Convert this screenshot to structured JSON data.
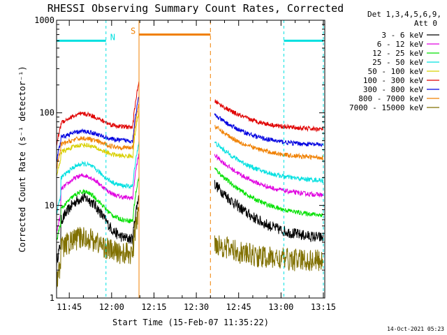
{
  "chart_data": {
    "type": "line",
    "title": "RHESSI Observing Summary Count Rates, Corrected",
    "xlabel": "Start Time (15-Feb-07 11:35:22)",
    "ylabel": "Corrected Count Rate (s⁻¹ detector⁻¹)",
    "yscale": "log",
    "ylim": [
      1,
      1000
    ],
    "xlim_minutes_after_1135": [
      5.5,
      100.5
    ],
    "x_ticks": [
      {
        "label": "11:45",
        "minutes": 10
      },
      {
        "label": "12:00",
        "minutes": 25
      },
      {
        "label": "12:15",
        "minutes": 40
      },
      {
        "label": "12:30",
        "minutes": 55
      },
      {
        "label": "12:45",
        "minutes": 70
      },
      {
        "label": "13:00",
        "minutes": 85
      },
      {
        "label": "13:15",
        "minutes": 100
      }
    ],
    "y_ticks": [
      {
        "label": "1",
        "value": 1
      },
      {
        "label": "10",
        "value": 10
      },
      {
        "label": "100",
        "value": 100
      },
      {
        "label": "1000",
        "value": 1000
      }
    ],
    "legend_header": [
      "Det 1,3,4,5,6,9,",
      "Att 0"
    ],
    "series": [
      {
        "name": "3 - 6 keV",
        "color": "#000000",
        "base": [
          2.4,
          4.3
        ],
        "peak": 12,
        "post_start": 17,
        "post_end": 4.2
      },
      {
        "name": "6 - 12 keV",
        "color": "#e000e0",
        "base": [
          5,
          12
        ],
        "peak": 21,
        "post_start": 35,
        "post_end": 12.5
      },
      {
        "name": "12 - 25 keV",
        "color": "#00e000",
        "base": [
          4,
          6.8
        ],
        "peak": 14,
        "post_start": 25,
        "post_end": 7.5
      },
      {
        "name": "25 - 50 keV",
        "color": "#00e0e0",
        "base": [
          8,
          16
        ],
        "peak": 28,
        "post_start": 48,
        "post_end": 18
      },
      {
        "name": "50 - 100 keV",
        "color": "#d8d000",
        "base": [
          20,
          34
        ],
        "peak": 45,
        "post_start": 0,
        "post_end": 0
      },
      {
        "name": "100 - 300 keV",
        "color": "#e00000",
        "base": [
          45,
          70
        ],
        "peak": 97,
        "post_start": 135,
        "post_end": 65
      },
      {
        "name": "300 - 800 keV",
        "color": "#0000e0",
        "base": [
          30,
          50
        ],
        "peak": 63,
        "post_start": 95,
        "post_end": 44
      },
      {
        "name": "800 - 7000 keV",
        "color": "#f08000",
        "base": [
          25,
          42
        ],
        "peak": 53,
        "post_start": 72,
        "post_end": 32
      },
      {
        "name": "7000 - 15000 keV",
        "color": "#807000",
        "base": [
          1.5,
          3
        ],
        "peak": 4.5,
        "post_start": 4,
        "post_end": 2.5
      }
    ],
    "intervals": [
      {
        "label": "N",
        "color": "#00e0e0",
        "start_minutes": 5.5,
        "end_minutes": 23,
        "level": 600
      },
      {
        "label": "",
        "color": "#00e0e0",
        "start_minutes": 86,
        "end_minutes": 100,
        "level": 600
      },
      {
        "label": "S",
        "color": "#f08000",
        "start_minutes": 34.7,
        "end_minutes": 60,
        "level": 700
      }
    ],
    "data_gap_minutes": [
      34.7,
      60
    ],
    "timestamp": "14-Oct-2021 05:23"
  }
}
